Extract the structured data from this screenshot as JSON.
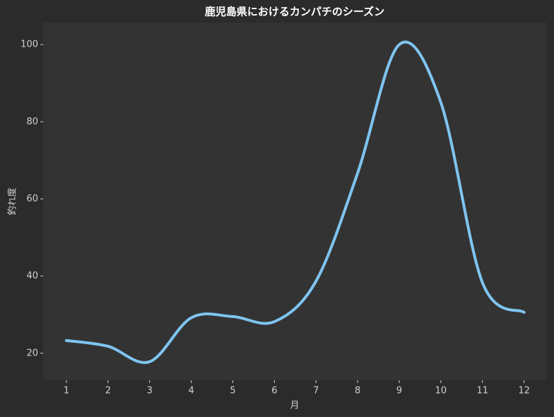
{
  "chart_data": {
    "type": "line",
    "title": "鹿児島県におけるカンパチのシーズン",
    "x_label": "月",
    "y_label": "釣れ度",
    "x": [
      1,
      2,
      3,
      4,
      5,
      6,
      7,
      8,
      9,
      10,
      11,
      12
    ],
    "series": [
      {
        "name": "釣れ度",
        "color": "#7fc4f0",
        "values": [
          23.3,
          21.8,
          17.8,
          29.2,
          29.5,
          28.2,
          38.7,
          66.7,
          100,
          85,
          38.3,
          30.6
        ]
      }
    ],
    "xlim": [
      0.44,
      12.55
    ],
    "xticks": [
      1,
      2,
      3,
      4,
      5,
      6,
      7,
      8,
      9,
      10,
      11,
      12
    ],
    "ylim": [
      13,
      105.7
    ],
    "yticks": [
      20,
      40,
      60,
      80,
      100
    ],
    "grid": false
  }
}
